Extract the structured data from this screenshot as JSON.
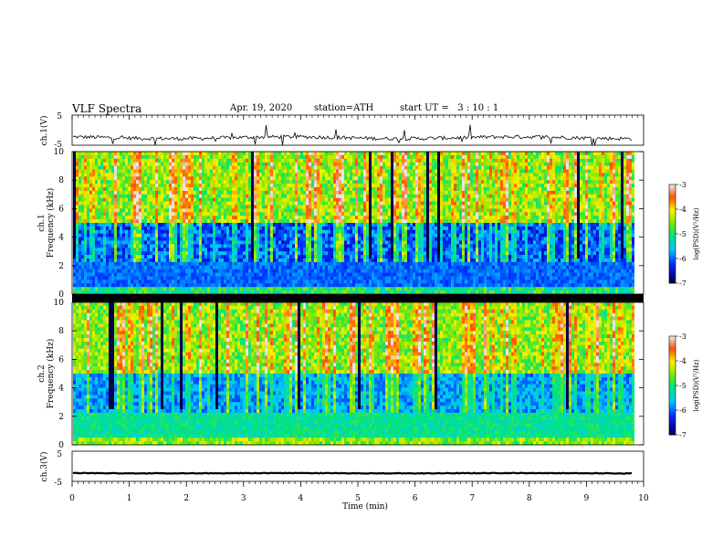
{
  "header": {
    "title": "VLF Spectra",
    "date": "Apr. 19, 2020",
    "station": "station=ATH",
    "start": "start UT =   3 : 10 : 1"
  },
  "chart_data": [
    {
      "type": "line",
      "name": "ch1-waveform",
      "ylabel": "ch.1(V)",
      "yticks": [
        "5",
        "-5"
      ],
      "ylim": [
        -5,
        5
      ],
      "xlim": [
        0,
        10
      ],
      "baseline_value": -2.5,
      "noise_amplitude": 0.6
    },
    {
      "type": "heatmap",
      "name": "ch1-spectrogram",
      "ylabel_line1": "ch.1",
      "ylabel_line2": "Frequency (kHz)",
      "yticks": [
        "0",
        "2",
        "4",
        "6",
        "8",
        "10"
      ],
      "ylim": [
        0,
        10
      ],
      "xlim": [
        0,
        9.8
      ],
      "colorbar": {
        "label": "log(PSD)(V²/Hz)",
        "ticks": [
          "-3",
          "-4",
          "-5",
          "-6",
          "-7"
        ],
        "range": [
          -7,
          -3
        ]
      }
    },
    {
      "type": "heatmap",
      "name": "ch2-spectrogram",
      "ylabel_line1": "ch.2",
      "ylabel_line2": "Frequency (kHz)",
      "yticks": [
        "0",
        "2",
        "4",
        "6",
        "8",
        "10"
      ],
      "ylim": [
        0,
        10
      ],
      "xlim": [
        0,
        9.8
      ],
      "colorbar": {
        "label": "log(PSD)(V²/Hz)",
        "ticks": [
          "-3",
          "-4",
          "-5",
          "-6",
          "-7"
        ],
        "range": [
          -7,
          -3
        ]
      }
    },
    {
      "type": "line",
      "name": "ch3-waveform",
      "ylabel": "ch.3(V)",
      "yticks": [
        "5",
        "-5"
      ],
      "ylim": [
        -5,
        5
      ],
      "xlim": [
        0,
        10
      ],
      "baseline_value": -2.3,
      "noise_amplitude": 0.1
    }
  ],
  "xaxis": {
    "label": "Time (min)",
    "ticks": [
      "0",
      "1",
      "2",
      "3",
      "4",
      "5",
      "6",
      "7",
      "8",
      "9",
      "10"
    ]
  }
}
